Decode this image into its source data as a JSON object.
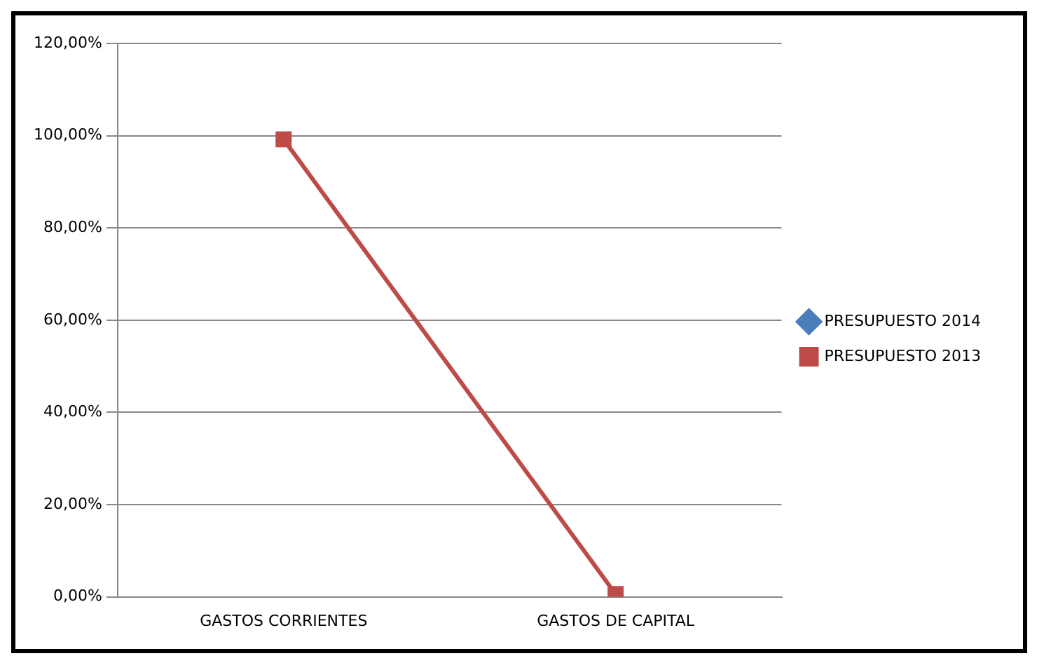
{
  "chart_data": {
    "type": "line",
    "categories": [
      "GASTOS CORRIENTES",
      "GASTOS DE CAPITAL"
    ],
    "series": [
      {
        "name": "PRESUPUESTO 2014",
        "color": "#4a7ebb",
        "values": [
          null,
          null
        ],
        "marker": "diamond"
      },
      {
        "name": "PRESUPUESTO 2013",
        "color": "#be4b48",
        "values": [
          99.2,
          0.6
        ],
        "marker": "square"
      }
    ],
    "ylim": [
      0,
      120
    ],
    "yticks": [
      {
        "value": 0,
        "label": "0,00%"
      },
      {
        "value": 20,
        "label": "20,00%"
      },
      {
        "value": 40,
        "label": "40,00%"
      },
      {
        "value": 60,
        "label": "60,00%"
      },
      {
        "value": 80,
        "label": "80,00%"
      },
      {
        "value": 100,
        "label": "100,00%"
      },
      {
        "value": 120,
        "label": "120,00%"
      }
    ],
    "grid": "y",
    "legend": "right",
    "line_style": "solid"
  }
}
